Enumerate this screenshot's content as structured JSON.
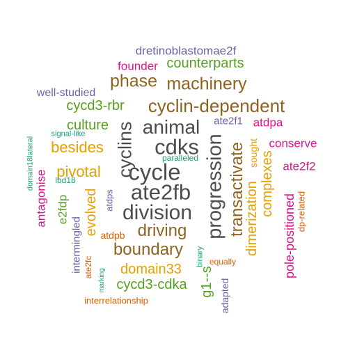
{
  "words": [
    {
      "text": "cycle",
      "color": "#4d4d4d"
    },
    {
      "text": "ate2fb",
      "color": "#4d4d4d"
    },
    {
      "text": "division",
      "color": "#4d4d4d"
    },
    {
      "text": "cdks",
      "color": "#4d4d4d"
    },
    {
      "text": "animal",
      "color": "#4d4d4d"
    },
    {
      "text": "progression",
      "color": "#4d4d4d"
    },
    {
      "text": "cyclins",
      "color": "#4d4d4d"
    },
    {
      "text": "cyclin-dependent",
      "color": "#8c6420"
    },
    {
      "text": "machinery",
      "color": "#8c6420"
    },
    {
      "text": "phase",
      "color": "#8c6420"
    },
    {
      "text": "transactivate",
      "color": "#8c6420"
    },
    {
      "text": "driving",
      "color": "#8c6420"
    },
    {
      "text": "boundary",
      "color": "#8c6420"
    },
    {
      "text": "dimerization",
      "color": "#e6a000"
    },
    {
      "text": "complexes",
      "color": "#e6a000"
    },
    {
      "text": "besides",
      "color": "#e6a000"
    },
    {
      "text": "pivotal",
      "color": "#e6a000"
    },
    {
      "text": "evolved",
      "color": "#e6a000"
    },
    {
      "text": "domain33",
      "color": "#e6a000"
    },
    {
      "text": "sought",
      "color": "#e6a000"
    },
    {
      "text": "counterparts",
      "color": "#55a020"
    },
    {
      "text": "cycd3-rbr",
      "color": "#55a020"
    },
    {
      "text": "culture",
      "color": "#55a020"
    },
    {
      "text": "cycd3-cdka",
      "color": "#55a020"
    },
    {
      "text": "g1--s",
      "color": "#55a020"
    },
    {
      "text": "e2fdp",
      "color": "#55a020"
    },
    {
      "text": "dretinoblastomae2f",
      "color": "#6e60a8"
    },
    {
      "text": "well-studied",
      "color": "#6e60a8"
    },
    {
      "text": "ate2f1",
      "color": "#6e60a8"
    },
    {
      "text": "intermingled",
      "color": "#6e60a8"
    },
    {
      "text": "atdps",
      "color": "#6e60a8"
    },
    {
      "text": "adapted",
      "color": "#6e60a8"
    },
    {
      "text": "founder",
      "color": "#e0148a"
    },
    {
      "text": "atdpa",
      "color": "#e0148a"
    },
    {
      "text": "conserve",
      "color": "#e0148a"
    },
    {
      "text": "ate2f2",
      "color": "#e0148a"
    },
    {
      "text": "pole-positioned",
      "color": "#e0148a"
    },
    {
      "text": "antagonise",
      "color": "#e0148a"
    },
    {
      "text": "dp-related",
      "color": "#d95f02"
    },
    {
      "text": "atdpb",
      "color": "#d95f02"
    },
    {
      "text": "ate2fc",
      "color": "#d95f02"
    },
    {
      "text": "interrelationship",
      "color": "#d95f02"
    },
    {
      "text": "equally",
      "color": "#d95f02"
    },
    {
      "text": "signal-like",
      "color": "#1b9e77"
    },
    {
      "text": "lbd18",
      "color": "#1b9e77"
    },
    {
      "text": "domain18lateral",
      "color": "#1b9e77"
    },
    {
      "text": "paralleled",
      "color": "#1b9e77"
    },
    {
      "text": "binary",
      "color": "#1b9e77"
    },
    {
      "text": "marking",
      "color": "#1b9e77"
    }
  ]
}
